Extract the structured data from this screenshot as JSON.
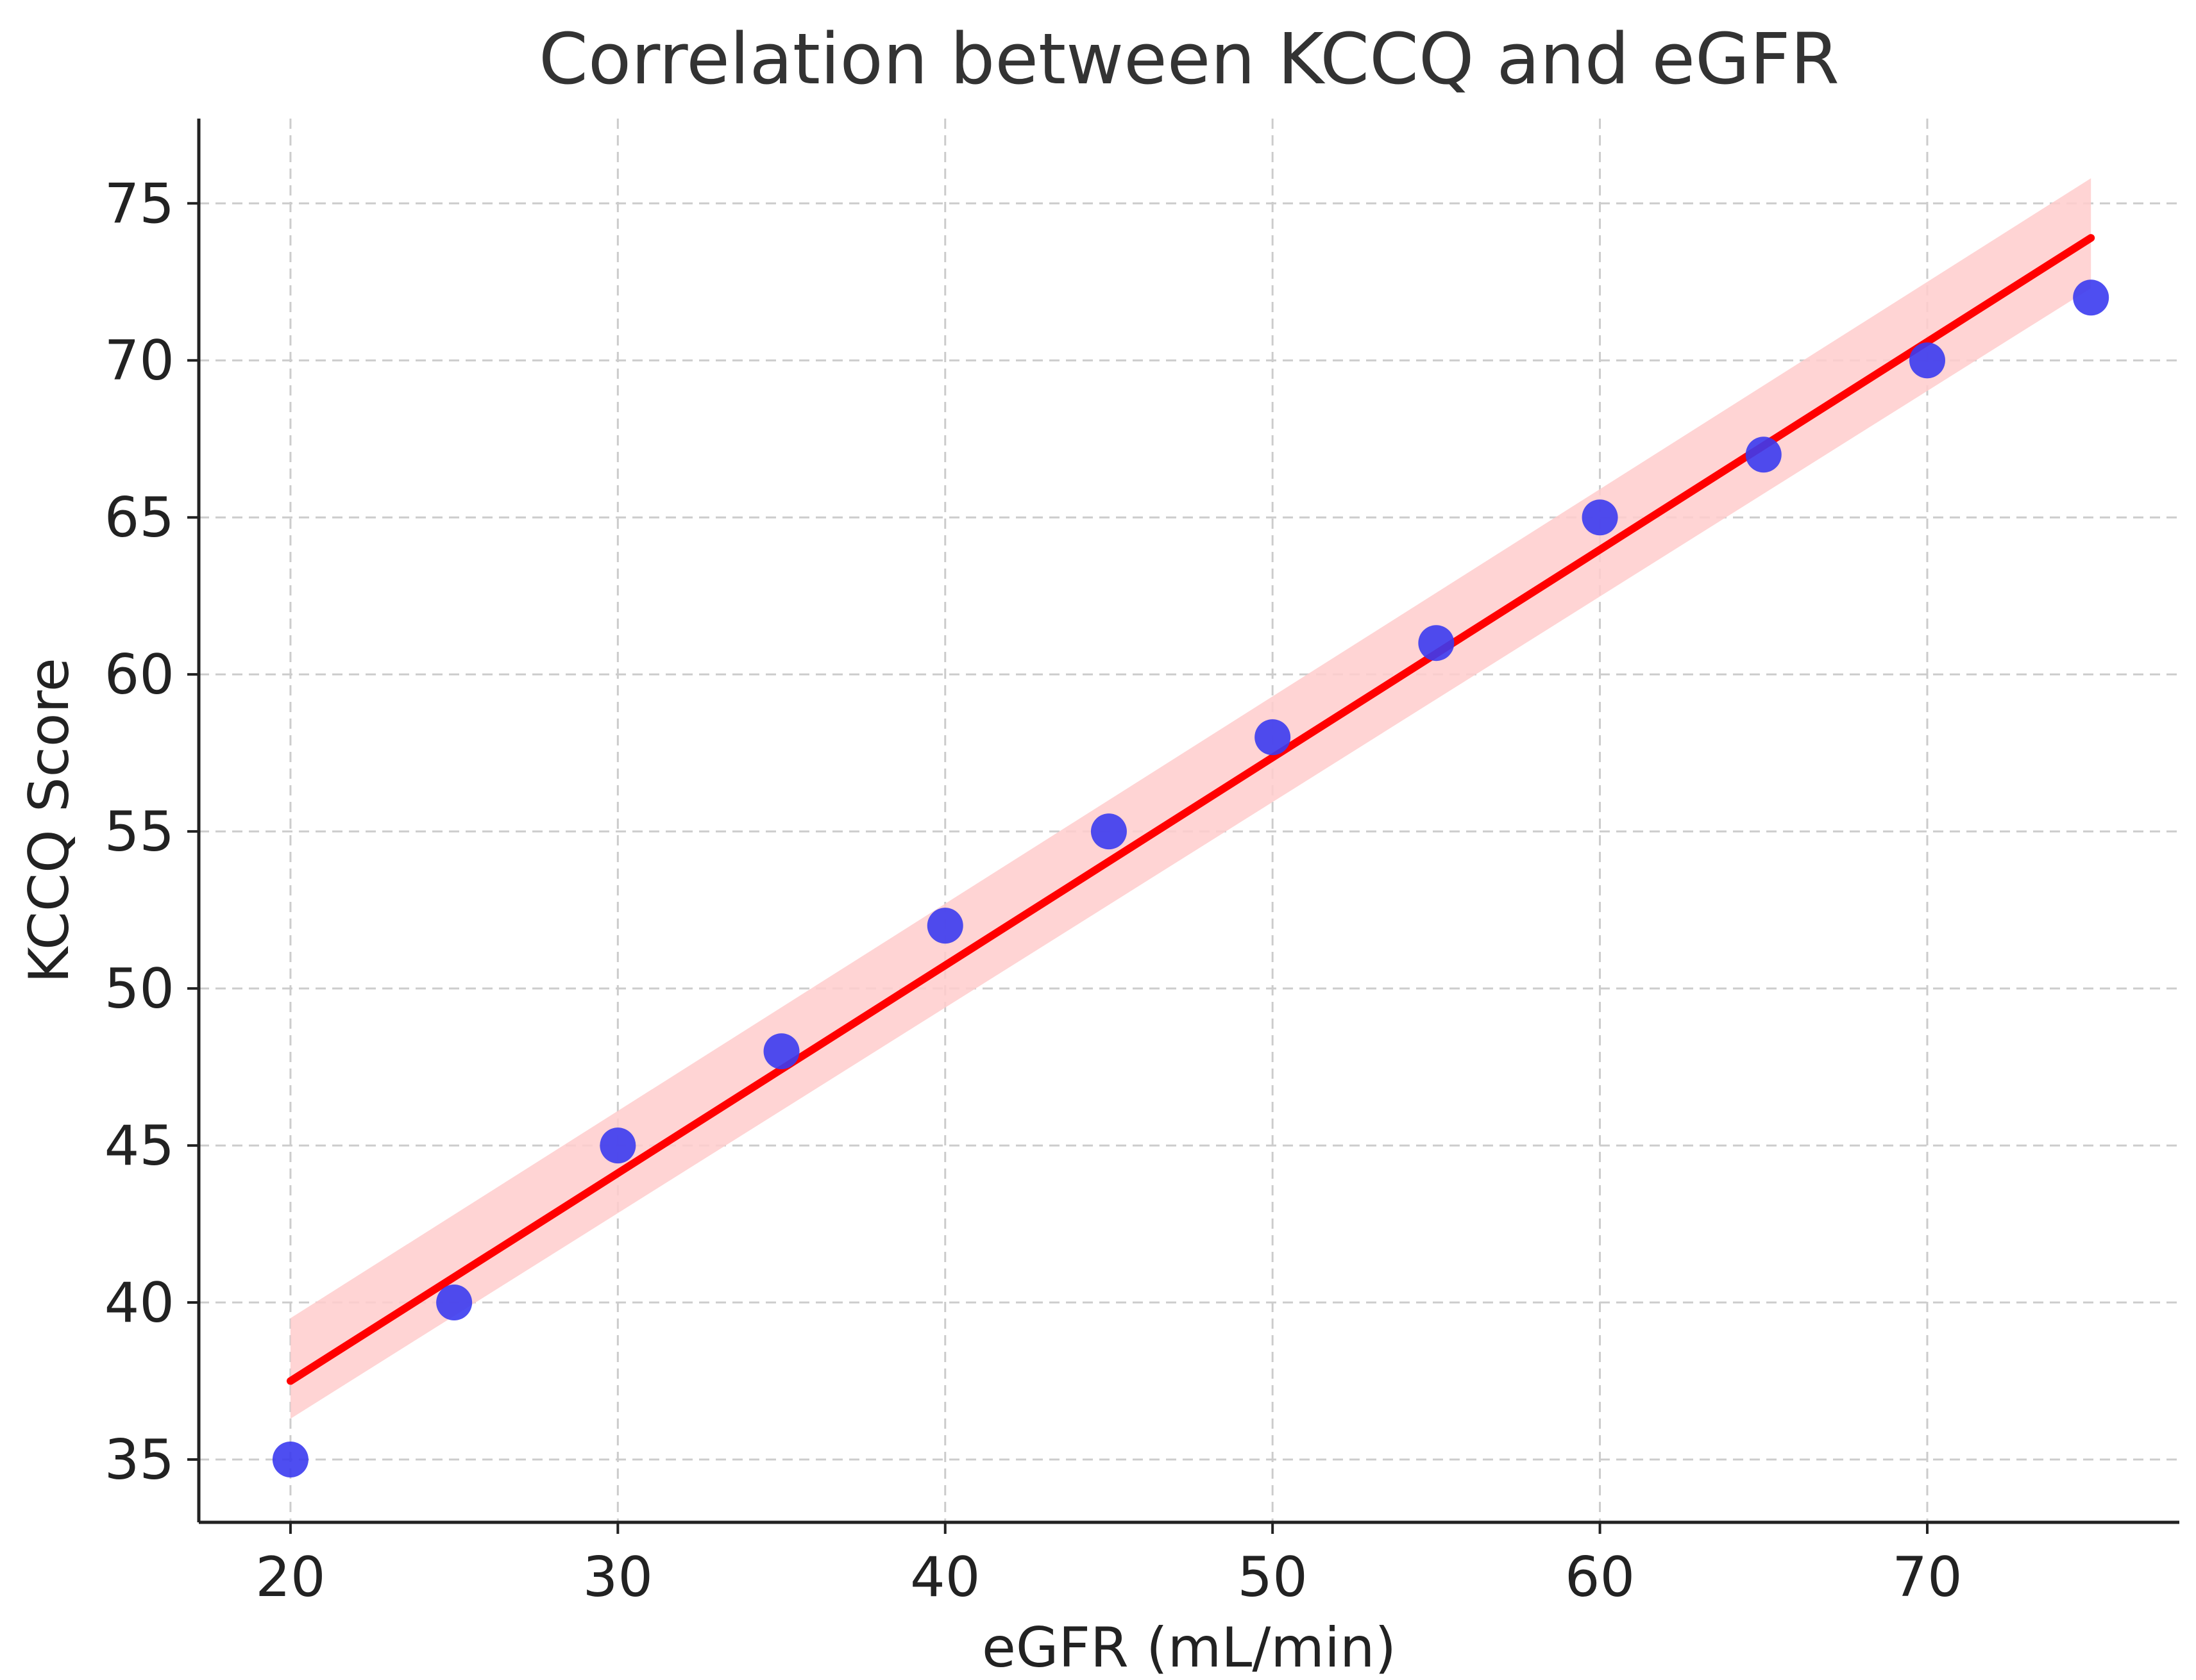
{
  "chart_data": {
    "type": "scatter",
    "title": "Correlation between KCCQ and eGFR",
    "xlabel": "eGFR (mL/min)",
    "ylabel": "KCCQ Score",
    "xlim": [
      17.2,
      77.7
    ],
    "ylim": [
      33,
      77.7
    ],
    "xticks": [
      20,
      30,
      40,
      50,
      60,
      70
    ],
    "yticks": [
      35,
      40,
      45,
      50,
      55,
      60,
      65,
      70,
      75
    ],
    "grid": true,
    "series": [
      {
        "kind": "scatter",
        "color": "#3b3bf0",
        "x": [
          20,
          25,
          30,
          35,
          40,
          45,
          50,
          55,
          60,
          65,
          70,
          75
        ],
        "y": [
          35,
          40,
          45,
          48,
          52,
          55,
          58,
          61,
          65,
          67,
          70,
          72
        ]
      }
    ],
    "regression": {
      "color": "#ff0000",
      "band_color": "#ffcccc",
      "x": [
        20,
        75
      ],
      "y": [
        37.5,
        73.9
      ],
      "ci_lower": [
        36.3,
        72.3
      ],
      "ci_upper": [
        39.5,
        75.8
      ]
    }
  }
}
